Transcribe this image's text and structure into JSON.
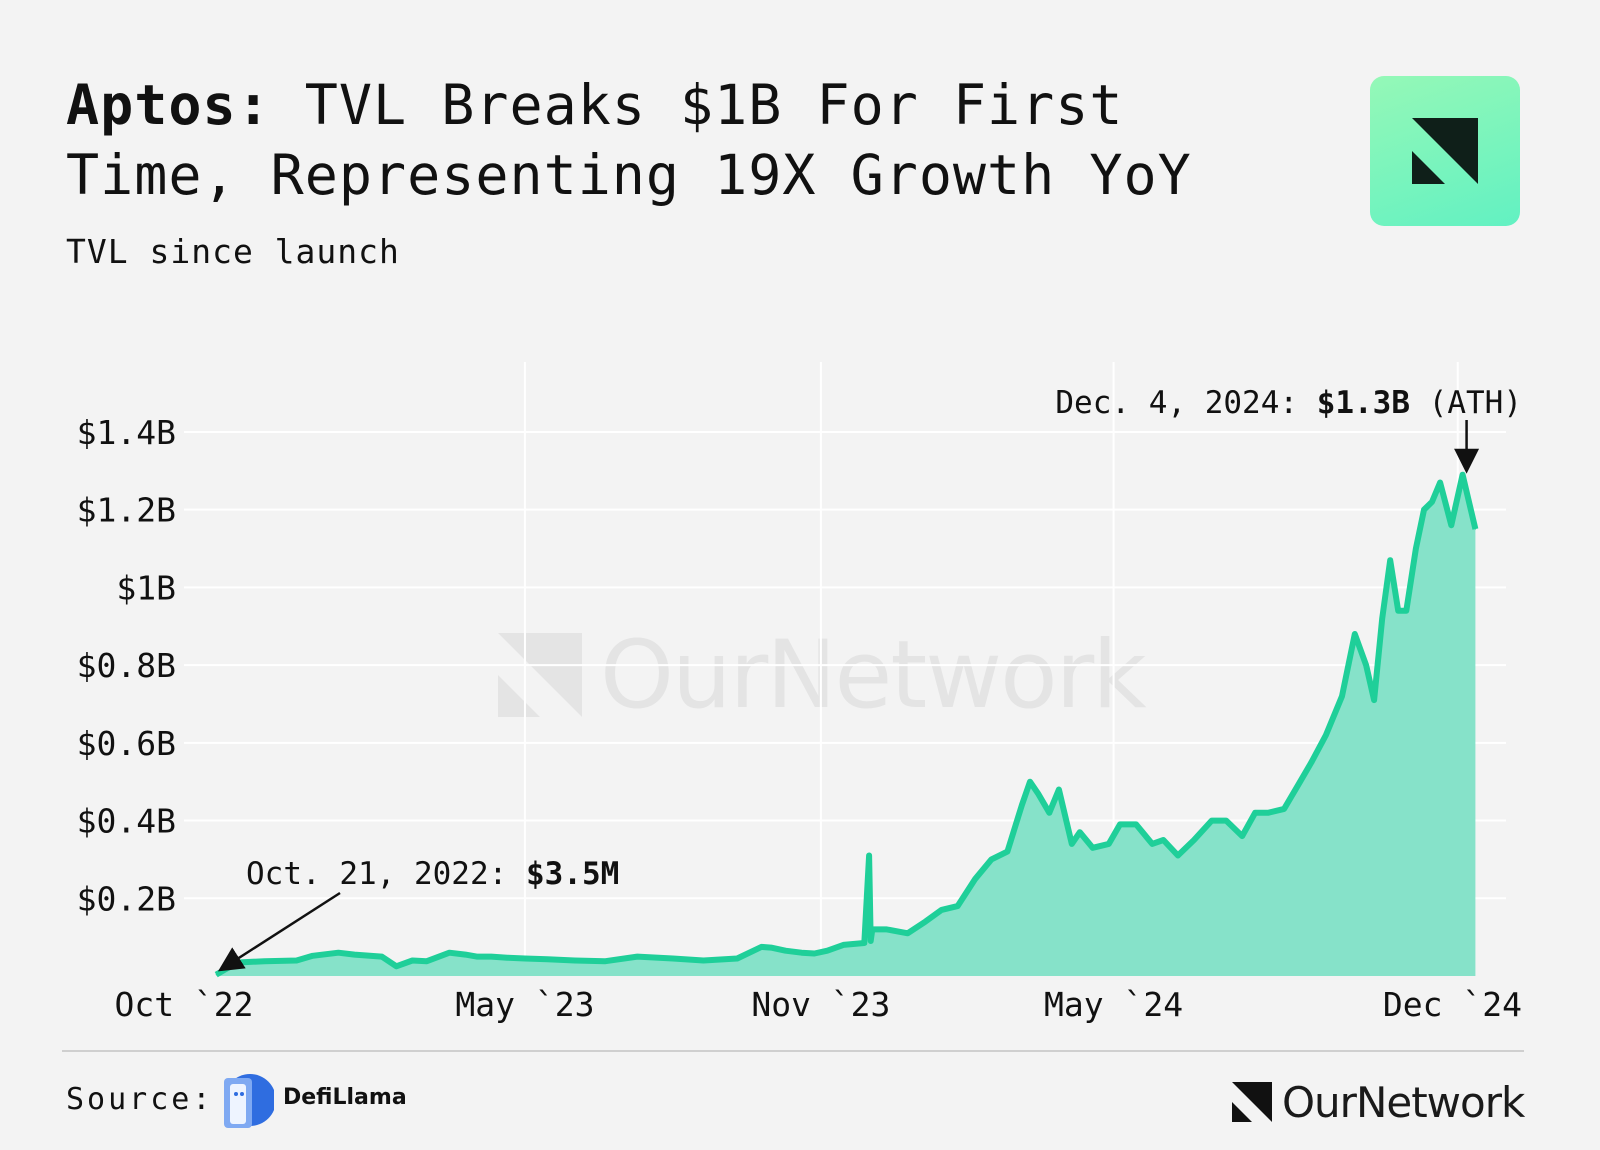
{
  "header": {
    "title_bold": "Aptos:",
    "title_rest": " TVL Breaks $1B For First Time, Representing 19X Growth YoY",
    "subtitle": "TVL since launch"
  },
  "watermark": {
    "text": "OurNetwork"
  },
  "footer": {
    "source_label": "Source:",
    "source_name": "DefiLlama",
    "brand": "OurNetwork"
  },
  "colors": {
    "line": "#1fcf99",
    "fill": "#7fe0c6",
    "background": "#f3f3f3",
    "grid": "#ffffff",
    "logo_dark": "#0f1f19"
  },
  "chart_data": {
    "type": "area",
    "title": "Aptos: TVL Breaks $1B For First Time, Representing 19X Growth YoY",
    "subtitle": "TVL since launch",
    "xlabel": "",
    "ylabel": "",
    "grid": true,
    "y_ticks": [
      {
        "value": 0.2,
        "label": "$0.2B"
      },
      {
        "value": 0.4,
        "label": "$0.4B"
      },
      {
        "value": 0.6,
        "label": "$0.6B"
      },
      {
        "value": 0.8,
        "label": "$0.8B"
      },
      {
        "value": 1.0,
        "label": "$1B"
      },
      {
        "value": 1.2,
        "label": "$1.2B"
      },
      {
        "value": 1.4,
        "label": "$1.4B"
      }
    ],
    "ylim": [
      0,
      1.58
    ],
    "xlim": [
      "2022-10-01",
      "2024-12-31"
    ],
    "x_ticks": [
      {
        "date": "2022-10-01",
        "label": "Oct `22"
      },
      {
        "date": "2023-05-01",
        "label": "May `23"
      },
      {
        "date": "2023-11-01",
        "label": "Nov `23"
      },
      {
        "date": "2024-05-01",
        "label": "May `24"
      },
      {
        "date": "2024-12-01",
        "label": "Dec `24"
      }
    ],
    "series": [
      {
        "x": [
          "2022-10-21",
          "2022-10-28",
          "2022-11-05",
          "2022-11-20",
          "2022-12-10",
          "2022-12-20",
          "2023-01-05",
          "2023-01-15",
          "2023-02-01",
          "2023-02-10",
          "2023-02-20",
          "2023-03-01",
          "2023-03-15",
          "2023-03-25",
          "2023-04-01",
          "2023-04-10",
          "2023-04-20",
          "2023-05-01",
          "2023-05-15",
          "2023-06-01",
          "2023-06-20",
          "2023-07-10",
          "2023-08-01",
          "2023-08-20",
          "2023-09-10",
          "2023-09-25",
          "2023-10-01",
          "2023-10-10",
          "2023-10-20",
          "2023-10-28",
          "2023-11-05",
          "2023-11-15",
          "2023-11-28",
          "2023-12-01",
          "2023-12-02",
          "2023-12-03",
          "2023-12-12",
          "2023-12-25",
          "2024-01-05",
          "2024-01-15",
          "2024-01-25",
          "2024-02-05",
          "2024-02-15",
          "2024-02-25",
          "2024-03-05",
          "2024-03-10",
          "2024-03-15",
          "2024-03-22",
          "2024-03-28",
          "2024-04-05",
          "2024-04-10",
          "2024-04-18",
          "2024-04-28",
          "2024-05-05",
          "2024-05-15",
          "2024-05-25",
          "2024-06-01",
          "2024-06-10",
          "2024-06-20",
          "2024-07-01",
          "2024-07-10",
          "2024-07-20",
          "2024-07-28",
          "2024-08-05",
          "2024-08-15",
          "2024-08-25",
          "2024-09-01",
          "2024-09-10",
          "2024-09-20",
          "2024-09-28",
          "2024-10-05",
          "2024-10-10",
          "2024-10-15",
          "2024-10-20",
          "2024-10-25",
          "2024-10-30",
          "2024-11-05",
          "2024-11-10",
          "2024-11-15",
          "2024-11-20",
          "2024-11-27",
          "2024-12-04",
          "2024-12-08",
          "2024-12-12"
        ],
        "values": [
          0.0035,
          0.02,
          0.035,
          0.038,
          0.04,
          0.052,
          0.06,
          0.055,
          0.05,
          0.025,
          0.04,
          0.038,
          0.06,
          0.055,
          0.05,
          0.05,
          0.047,
          0.045,
          0.043,
          0.04,
          0.038,
          0.05,
          0.045,
          0.04,
          0.045,
          0.075,
          0.073,
          0.065,
          0.06,
          0.058,
          0.065,
          0.08,
          0.085,
          0.31,
          0.09,
          0.12,
          0.12,
          0.11,
          0.14,
          0.17,
          0.18,
          0.25,
          0.3,
          0.32,
          0.44,
          0.5,
          0.47,
          0.42,
          0.48,
          0.34,
          0.37,
          0.33,
          0.34,
          0.39,
          0.39,
          0.34,
          0.35,
          0.31,
          0.35,
          0.4,
          0.4,
          0.36,
          0.42,
          0.42,
          0.43,
          0.5,
          0.55,
          0.62,
          0.72,
          0.88,
          0.8,
          0.71,
          0.92,
          1.07,
          0.94,
          0.94,
          1.1,
          1.2,
          1.22,
          1.27,
          1.16,
          1.29,
          1.22,
          1.15
        ]
      }
    ],
    "annotations": [
      {
        "date": "2022-10-21",
        "value": 0.0035,
        "text_plain": "Oct. 21, 2022: ",
        "text_bold": "$3.5M"
      },
      {
        "date": "2024-12-04",
        "value": 1.29,
        "text_plain": "Dec. 4, 2024: ",
        "text_bold": "$1.3B",
        "text_after": " (ATH)"
      }
    ]
  }
}
